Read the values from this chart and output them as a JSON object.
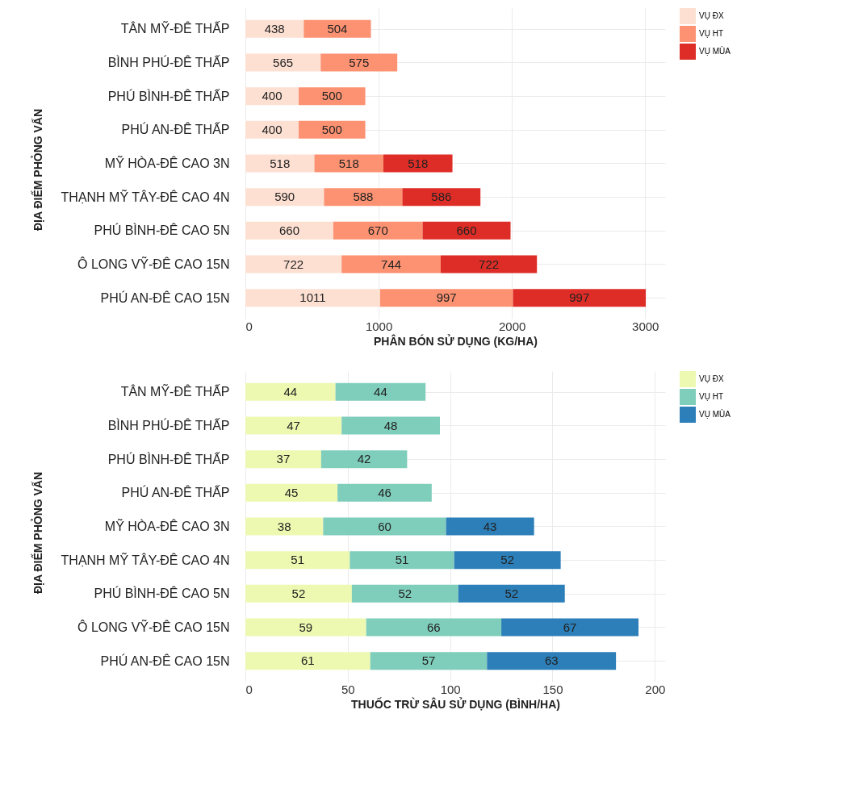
{
  "chart_data": [
    {
      "type": "bar",
      "orientation": "horizontal",
      "stacked": true,
      "data_labels": true,
      "grid": true,
      "legend": "right",
      "xlabel": "PHÂN BÓN SỬ DỤNG (KG/HA)",
      "ylabel": "ĐỊA ĐIỂM PHỎNG VẤN",
      "categories": [
        "TÂN MỸ-ĐÊ THẤP",
        "BÌNH PHÚ-ĐÊ THẤP",
        "PHÚ BÌNH-ĐÊ THẤP",
        "PHÚ AN-ĐÊ THẤP",
        "MỸ HÒA-ĐÊ CAO 3N",
        "THẠNH MỸ TÂY-ĐÊ CAO 4N",
        "PHÚ BÌNH-ĐÊ CAO 5N",
        "Ô LONG VỸ-ĐÊ CAO 15N",
        "PHÚ AN-ĐÊ CAO 15N"
      ],
      "xlim": [
        0,
        3150
      ],
      "xticks": [
        0,
        1000,
        2000,
        3000
      ],
      "series": [
        {
          "name": "VỤ ĐX",
          "color": "#fde0d2",
          "values": [
            438,
            565,
            400,
            400,
            518,
            590,
            660,
            722,
            1011
          ]
        },
        {
          "name": "VỤ HT",
          "color": "#fc9272",
          "values": [
            504,
            575,
            500,
            500,
            518,
            588,
            670,
            744,
            997
          ]
        },
        {
          "name": "VỤ MÙA",
          "color": "#de2d26",
          "values": [
            null,
            null,
            null,
            null,
            518,
            586,
            660,
            722,
            997
          ]
        }
      ]
    },
    {
      "type": "bar",
      "orientation": "horizontal",
      "stacked": true,
      "data_labels": true,
      "grid": true,
      "legend": "right",
      "xlabel": "THUỐC TRỪ SÂU SỬ DỤNG (BÌNH/HA)",
      "ylabel": "ĐỊA ĐIỂM PHỎNG VẤN",
      "categories": [
        "TÂN MỸ-ĐÊ THẤP",
        "BÌNH PHÚ-ĐÊ THẤP",
        "PHÚ BÌNH-ĐÊ THẤP",
        "PHÚ AN-ĐÊ THẤP",
        "MỸ HÒA-ĐÊ CAO 3N",
        "THẠNH MỸ TÂY-ĐÊ CAO 4N",
        "PHÚ BÌNH-ĐÊ CAO 5N",
        "Ô LONG VỸ-ĐÊ CAO 15N",
        "PHÚ AN-ĐÊ CAO 15N"
      ],
      "xlim": [
        0,
        205
      ],
      "xticks": [
        0,
        50,
        100,
        150,
        200
      ],
      "series": [
        {
          "name": "VỤ ĐX",
          "color": "#edf8b1",
          "values": [
            44,
            47,
            37,
            45,
            38,
            51,
            52,
            59,
            61
          ]
        },
        {
          "name": "VỤ HT",
          "color": "#7fcdbb",
          "values": [
            44,
            48,
            42,
            46,
            60,
            51,
            52,
            66,
            57
          ]
        },
        {
          "name": "VỤ MÙA",
          "color": "#2c7fb8",
          "values": [
            null,
            null,
            null,
            null,
            43,
            52,
            52,
            67,
            63
          ]
        }
      ]
    }
  ]
}
